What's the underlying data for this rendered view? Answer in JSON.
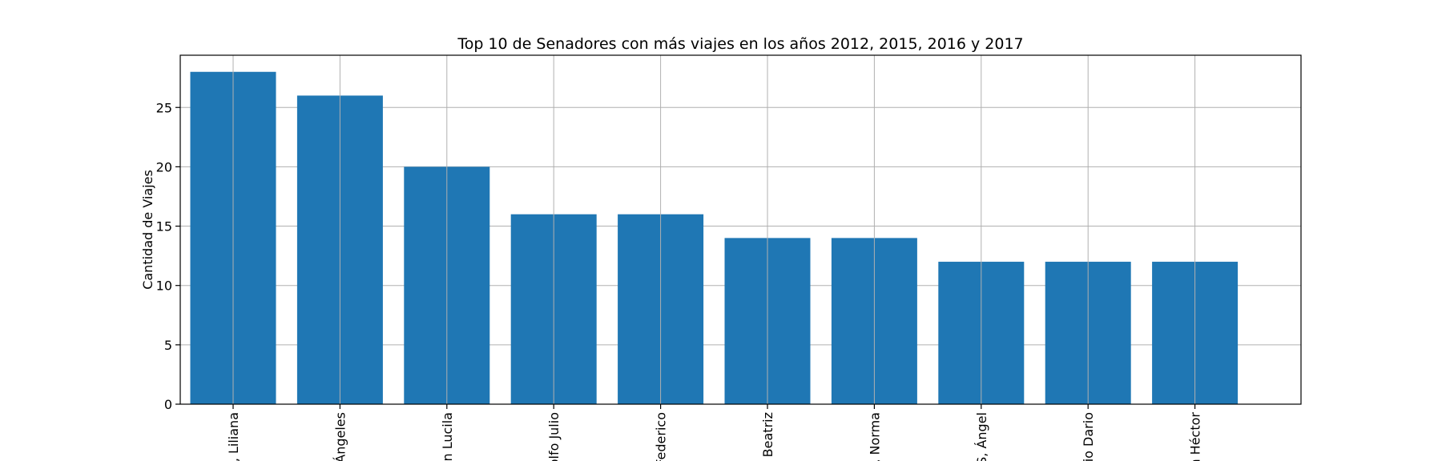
{
  "chart_data": {
    "type": "bar",
    "title": "Top 10 de Senadores con más viajes en los años 2012, 2015, 2016 y 2017",
    "xlabel": "",
    "ylabel": "Cantidad de Viajes",
    "categories": [
      ", Liliana",
      "Ángeles",
      "en Lucila",
      "olfo Julio",
      "Federico",
      " Beatriz",
      ", Norma",
      "S, Ángel",
      "io Dario",
      "n Héctor"
    ],
    "values": [
      28,
      26,
      20,
      16,
      16,
      14,
      14,
      12,
      12,
      12
    ],
    "ylim": [
      0,
      29.4
    ],
    "yticks": [
      "0",
      "5",
      "10",
      "15",
      "20",
      "25"
    ],
    "grid": true,
    "bar_color": "#1f77b4",
    "grid_color": "#b0b0b0"
  }
}
